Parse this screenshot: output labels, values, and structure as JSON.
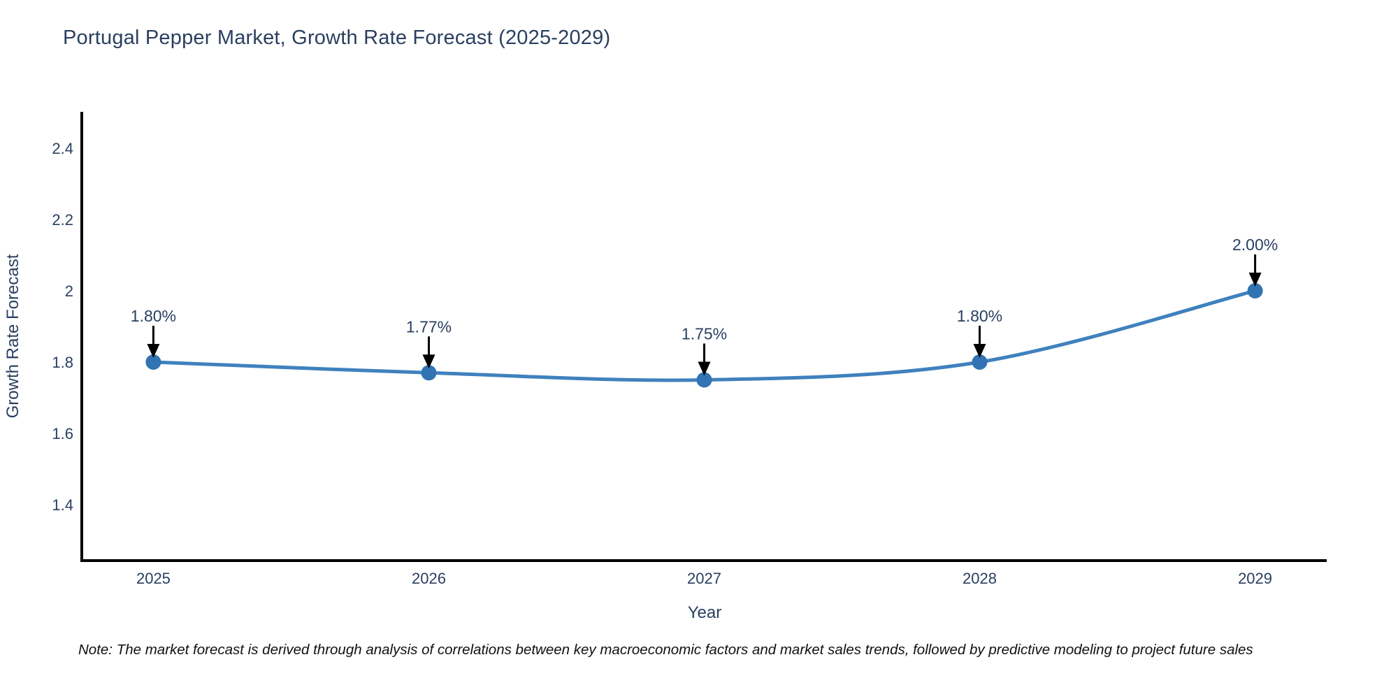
{
  "page": {
    "title": "Portugal Pepper Market, Growth Rate Forecast (2025-2029)",
    "note": "Note: The market forecast is derived through analysis of correlations between key macroeconomic factors and market sales trends, followed by predictive modeling to project future sales",
    "background_color": "#ffffff"
  },
  "colors": {
    "title_text": "#2a3f5f",
    "tick_text": "#2a3f5f",
    "axis_line": "#000000",
    "line": "#3f81bd",
    "marker": "#3273b3",
    "annotation_text": "#2a3f5f",
    "annotation_arrow": "#000000",
    "note_text": "#111111"
  },
  "chart_data": {
    "type": "line",
    "title": "Portugal Pepper Market, Growth Rate Forecast (2025-2029)",
    "xlabel": "Year",
    "ylabel": "Growth Rate Forecast",
    "x": [
      2025,
      2026,
      2027,
      2028,
      2029
    ],
    "x_tick_labels": [
      "2025",
      "2026",
      "2027",
      "2028",
      "2029"
    ],
    "values": [
      1.8,
      1.77,
      1.75,
      1.8,
      2.0
    ],
    "point_labels": [
      "1.80%",
      "1.77%",
      "1.75%",
      "1.80%",
      "2.00%"
    ],
    "series_name": "Growth Rate Forecast",
    "y_ticks": [
      1.4,
      1.6,
      1.8,
      2.0,
      2.2,
      2.4
    ],
    "y_tick_labels": [
      "1.4",
      "1.6",
      "1.8",
      "2",
      "2.2",
      "2.4"
    ],
    "xlim": [
      2024.74,
      2029.26
    ],
    "ylim": [
      1.243,
      2.502
    ],
    "grid": false,
    "legend": "none",
    "line_shape": "spline",
    "markers": true,
    "annotations_have_arrows": true
  }
}
